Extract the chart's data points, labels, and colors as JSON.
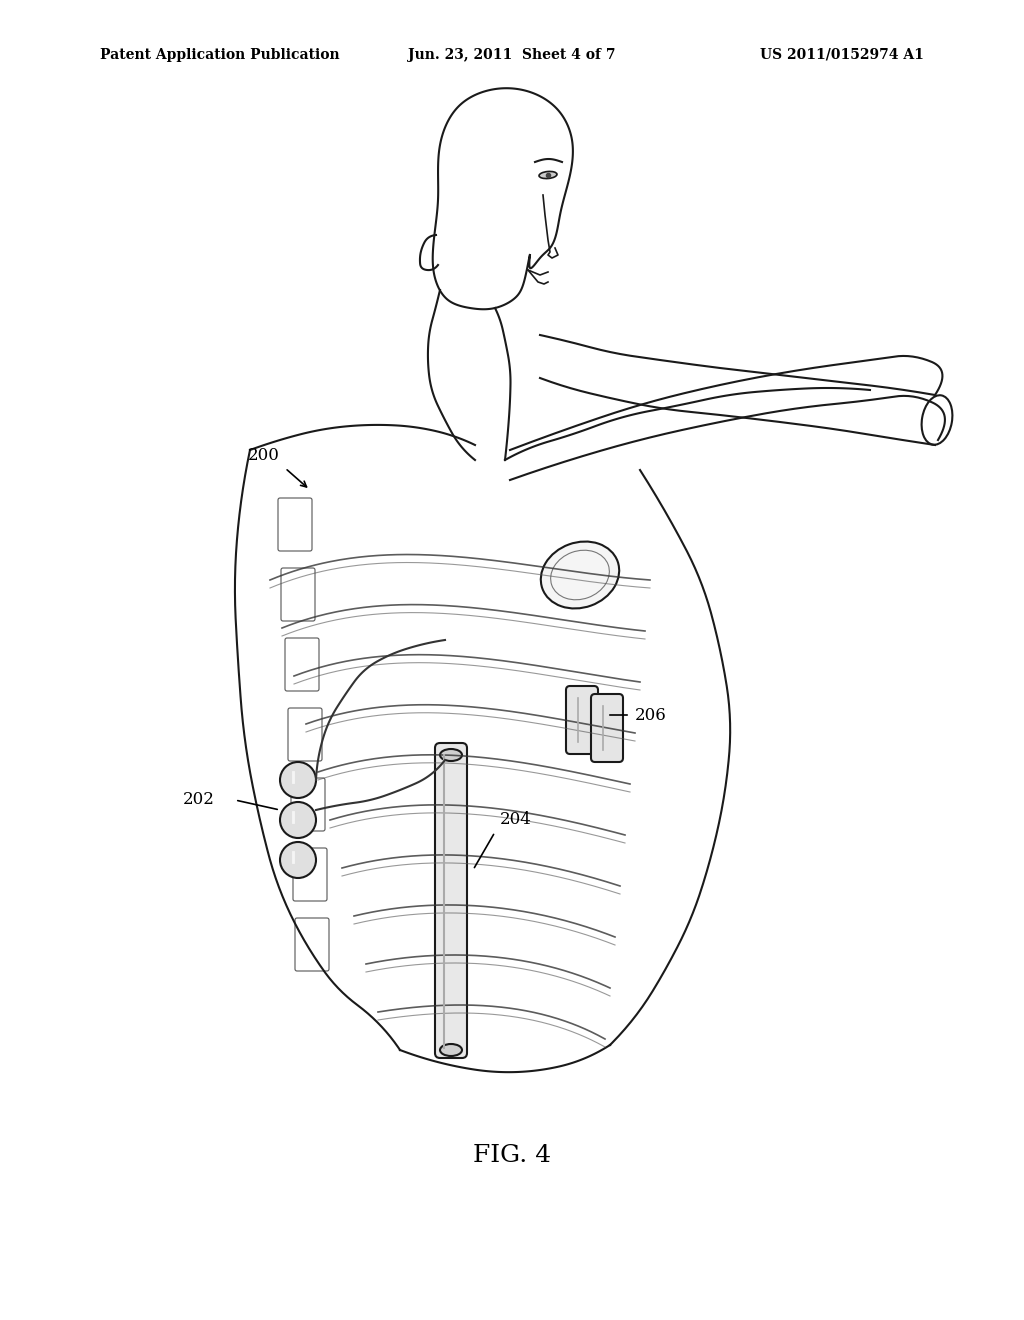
{
  "bg_color": "#ffffff",
  "header_left": "Patent Application Publication",
  "header_center": "Jun. 23, 2011  Sheet 4 of 7",
  "header_right": "US 2011/0152974 A1",
  "fig_label": "FIG. 4",
  "label_200": "200",
  "label_202": "202",
  "label_204": "204",
  "label_206": "206",
  "title_fontsize": 10,
  "header_fontsize": 10,
  "annotation_fontsize": 12,
  "fig_label_fontsize": 18
}
